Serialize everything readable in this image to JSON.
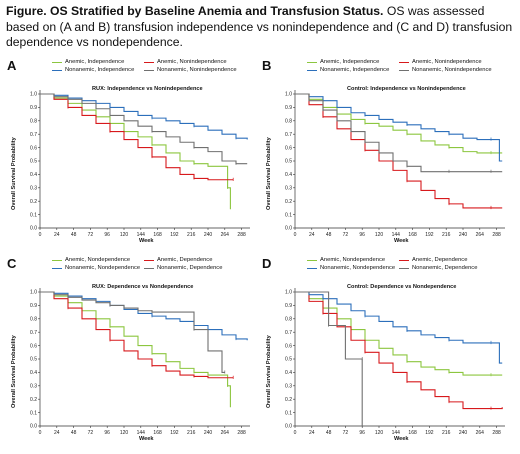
{
  "caption": {
    "bold": "Figure. OS Stratified by Baseline Anemia and Transfusion Status.",
    "rest": " OS was assessed based on (A and B) transfusion independence vs nonindependence and (C and D) transfusion dependence vs nondependence."
  },
  "colors": {
    "green": "#8cc63f",
    "red": "#d7191c",
    "blue": "#2c6fbb",
    "gray": "#707070"
  },
  "chart_data": [
    {
      "type": "line",
      "panel_label": "A",
      "title": "RUX: Independence vs Nonindependence",
      "xlabel": "Week",
      "ylabel": "Overall Survival Probability",
      "xlim": [
        0,
        300
      ],
      "ylim": [
        0,
        1.0
      ],
      "xticks": [
        0,
        24,
        48,
        72,
        96,
        120,
        144,
        168,
        192,
        216,
        240,
        264,
        288
      ],
      "yticks": [
        0,
        0.1,
        0.2,
        0.3,
        0.4,
        0.5,
        0.6,
        0.7,
        0.8,
        0.9,
        1.0
      ],
      "legend_position": "top",
      "series": [
        {
          "name": "Anemic, Independence",
          "color": "green",
          "x": [
            0,
            20,
            40,
            60,
            80,
            100,
            120,
            140,
            160,
            180,
            200,
            220,
            240,
            260,
            268,
            272
          ],
          "y": [
            1.0,
            0.97,
            0.93,
            0.88,
            0.83,
            0.78,
            0.72,
            0.68,
            0.62,
            0.56,
            0.5,
            0.48,
            0.46,
            0.46,
            0.3,
            0.14
          ]
        },
        {
          "name": "Anemic, Nonindependence",
          "color": "red",
          "x": [
            0,
            20,
            40,
            60,
            80,
            100,
            120,
            140,
            160,
            180,
            200,
            220,
            240,
            260,
            276
          ],
          "y": [
            1.0,
            0.96,
            0.9,
            0.84,
            0.78,
            0.72,
            0.66,
            0.6,
            0.53,
            0.45,
            0.4,
            0.37,
            0.36,
            0.36,
            0.36
          ]
        },
        {
          "name": "Nonanemic, Independence",
          "color": "blue",
          "x": [
            0,
            20,
            40,
            60,
            80,
            100,
            120,
            140,
            160,
            180,
            200,
            220,
            240,
            260,
            280,
            296
          ],
          "y": [
            1.0,
            0.99,
            0.97,
            0.95,
            0.93,
            0.9,
            0.87,
            0.84,
            0.82,
            0.8,
            0.78,
            0.76,
            0.73,
            0.7,
            0.67,
            0.66
          ]
        },
        {
          "name": "Nonanemic, Nonindependence",
          "color": "gray",
          "x": [
            0,
            20,
            40,
            60,
            80,
            100,
            120,
            140,
            160,
            180,
            200,
            220,
            240,
            260,
            280,
            296
          ],
          "y": [
            1.0,
            0.98,
            0.96,
            0.93,
            0.89,
            0.84,
            0.8,
            0.76,
            0.72,
            0.68,
            0.64,
            0.6,
            0.57,
            0.5,
            0.48,
            0.48
          ]
        }
      ]
    },
    {
      "type": "line",
      "panel_label": "B",
      "title": "Control: Independence vs Nonindependence",
      "xlabel": "Week",
      "ylabel": "Overall Survival Probability",
      "xlim": [
        0,
        300
      ],
      "ylim": [
        0,
        1.0
      ],
      "xticks": [
        0,
        24,
        48,
        72,
        96,
        120,
        144,
        168,
        192,
        216,
        240,
        264,
        288
      ],
      "yticks": [
        0,
        0.1,
        0.2,
        0.3,
        0.4,
        0.5,
        0.6,
        0.7,
        0.8,
        0.9,
        1.0
      ],
      "legend_position": "top",
      "series": [
        {
          "name": "Anemic, Independence",
          "color": "green",
          "x": [
            0,
            20,
            40,
            60,
            80,
            100,
            120,
            140,
            160,
            180,
            200,
            220,
            240,
            260,
            280,
            296
          ],
          "y": [
            1.0,
            0.96,
            0.9,
            0.85,
            0.81,
            0.78,
            0.76,
            0.73,
            0.7,
            0.65,
            0.62,
            0.6,
            0.57,
            0.56,
            0.56,
            0.56
          ]
        },
        {
          "name": "Anemic, Nonindependence",
          "color": "red",
          "x": [
            0,
            20,
            40,
            60,
            80,
            100,
            120,
            140,
            160,
            180,
            200,
            220,
            240,
            260,
            280,
            296
          ],
          "y": [
            1.0,
            0.92,
            0.83,
            0.74,
            0.66,
            0.58,
            0.5,
            0.43,
            0.35,
            0.28,
            0.22,
            0.18,
            0.15,
            0.15,
            0.15,
            0.15
          ]
        },
        {
          "name": "Nonanemic, Independence",
          "color": "blue",
          "x": [
            0,
            20,
            40,
            60,
            80,
            100,
            120,
            140,
            160,
            180,
            200,
            220,
            240,
            260,
            280,
            292,
            296
          ],
          "y": [
            1.0,
            0.98,
            0.95,
            0.9,
            0.86,
            0.84,
            0.81,
            0.79,
            0.77,
            0.74,
            0.72,
            0.7,
            0.67,
            0.66,
            0.66,
            0.5,
            0.5
          ]
        },
        {
          "name": "Nonanemic, Nonindependence",
          "color": "gray",
          "x": [
            0,
            20,
            40,
            60,
            80,
            100,
            120,
            140,
            160,
            180,
            200,
            220,
            240,
            260,
            280,
            296
          ],
          "y": [
            1.0,
            0.95,
            0.88,
            0.8,
            0.72,
            0.64,
            0.56,
            0.5,
            0.46,
            0.42,
            0.42,
            0.42,
            0.42,
            0.42,
            0.42,
            0.42
          ]
        }
      ]
    },
    {
      "type": "line",
      "panel_label": "C",
      "title": "RUX: Dependence vs Nondependence",
      "xlabel": "Week",
      "ylabel": "Overall Survival Probability",
      "xlim": [
        0,
        300
      ],
      "ylim": [
        0,
        1.0
      ],
      "xticks": [
        0,
        24,
        48,
        72,
        96,
        120,
        144,
        168,
        192,
        216,
        240,
        264,
        288
      ],
      "yticks": [
        0,
        0.1,
        0.2,
        0.3,
        0.4,
        0.5,
        0.6,
        0.7,
        0.8,
        0.9,
        1.0
      ],
      "legend_position": "top",
      "series": [
        {
          "name": "Anemic, Nondependence",
          "color": "green",
          "x": [
            0,
            20,
            40,
            60,
            80,
            100,
            120,
            140,
            160,
            180,
            200,
            220,
            240,
            260,
            268,
            272
          ],
          "y": [
            1.0,
            0.97,
            0.92,
            0.86,
            0.8,
            0.74,
            0.67,
            0.6,
            0.54,
            0.48,
            0.43,
            0.4,
            0.38,
            0.38,
            0.3,
            0.14
          ]
        },
        {
          "name": "Anemic, Dependence",
          "color": "red",
          "x": [
            0,
            20,
            40,
            60,
            80,
            100,
            120,
            140,
            160,
            180,
            200,
            220,
            240,
            260,
            276
          ],
          "y": [
            1.0,
            0.95,
            0.88,
            0.8,
            0.72,
            0.64,
            0.56,
            0.5,
            0.45,
            0.41,
            0.38,
            0.37,
            0.36,
            0.36,
            0.36
          ]
        },
        {
          "name": "Nonanemic, Nondependence",
          "color": "blue",
          "x": [
            0,
            20,
            40,
            60,
            80,
            100,
            120,
            140,
            160,
            180,
            200,
            220,
            240,
            260,
            280,
            296
          ],
          "y": [
            1.0,
            0.99,
            0.97,
            0.95,
            0.93,
            0.9,
            0.87,
            0.84,
            0.82,
            0.8,
            0.78,
            0.75,
            0.72,
            0.68,
            0.65,
            0.64
          ]
        },
        {
          "name": "Nonanemic, Dependence",
          "color": "gray",
          "x": [
            0,
            20,
            40,
            60,
            80,
            100,
            120,
            140,
            160,
            180,
            200,
            220,
            240,
            260,
            264
          ],
          "y": [
            1.0,
            0.98,
            0.96,
            0.94,
            0.92,
            0.9,
            0.88,
            0.86,
            0.85,
            0.85,
            0.85,
            0.72,
            0.56,
            0.4,
            0.4
          ]
        }
      ]
    },
    {
      "type": "line",
      "panel_label": "D",
      "title": "Control: Dependence vs Nondependence",
      "xlabel": "Week",
      "ylabel": "Overall Survival Probability",
      "xlim": [
        0,
        300
      ],
      "ylim": [
        0,
        1.0
      ],
      "xticks": [
        0,
        24,
        48,
        72,
        96,
        120,
        144,
        168,
        192,
        216,
        240,
        264,
        288
      ],
      "yticks": [
        0,
        0.1,
        0.2,
        0.3,
        0.4,
        0.5,
        0.6,
        0.7,
        0.8,
        0.9,
        1.0
      ],
      "legend_position": "top",
      "series": [
        {
          "name": "Anemic, Nondependence",
          "color": "green",
          "x": [
            0,
            20,
            40,
            60,
            80,
            100,
            120,
            140,
            160,
            180,
            200,
            220,
            240,
            260,
            280,
            296
          ],
          "y": [
            1.0,
            0.95,
            0.88,
            0.8,
            0.72,
            0.64,
            0.58,
            0.53,
            0.48,
            0.44,
            0.42,
            0.4,
            0.38,
            0.38,
            0.38,
            0.38
          ]
        },
        {
          "name": "Anemic, Dependence",
          "color": "red",
          "x": [
            0,
            20,
            40,
            60,
            80,
            100,
            120,
            140,
            160,
            180,
            200,
            220,
            240,
            260,
            280,
            296
          ],
          "y": [
            1.0,
            0.93,
            0.84,
            0.74,
            0.64,
            0.55,
            0.47,
            0.4,
            0.33,
            0.27,
            0.22,
            0.18,
            0.13,
            0.13,
            0.13,
            0.14
          ]
        },
        {
          "name": "Nonanemic, Nondependence",
          "color": "blue",
          "x": [
            0,
            20,
            40,
            60,
            80,
            100,
            120,
            140,
            160,
            180,
            200,
            220,
            240,
            260,
            280,
            292,
            296
          ],
          "y": [
            1.0,
            0.98,
            0.95,
            0.91,
            0.86,
            0.82,
            0.78,
            0.74,
            0.71,
            0.68,
            0.66,
            0.64,
            0.62,
            0.62,
            0.62,
            0.47,
            0.47
          ]
        },
        {
          "name": "Nonanemic, Dependence",
          "color": "gray",
          "x": [
            0,
            48,
            48,
            72,
            72,
            96,
            96
          ],
          "y": [
            1.0,
            1.0,
            0.75,
            0.75,
            0.5,
            0.5,
            0.0
          ]
        }
      ]
    }
  ]
}
